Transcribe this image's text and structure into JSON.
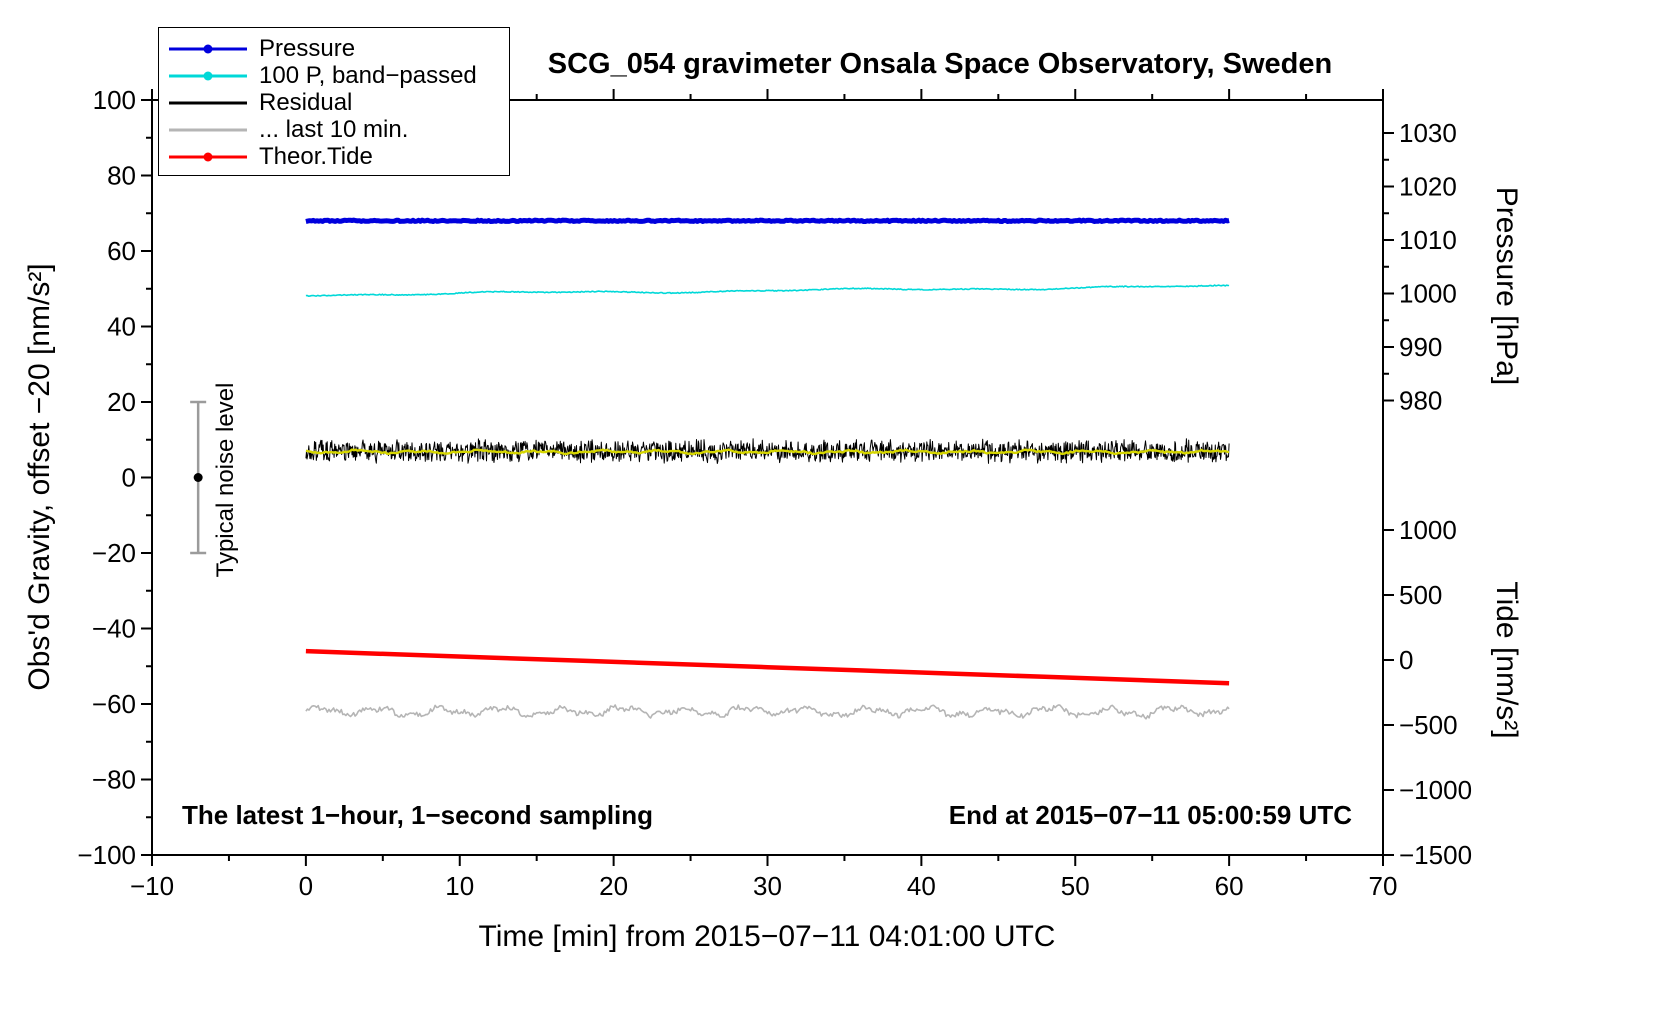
{
  "chart_data": {
    "type": "line",
    "title": "SCG_054 gravimeter Onsala Space Observatory, Sweden",
    "xlabel": "Time [min] from 2015−07−11 04:01:00 UTC",
    "ylabel_left": "Obs'd Gravity, offset −20 [nm/s²]",
    "ylabel_pressure": "Pressure [hPa]",
    "ylabel_tide": "Tide [nm/s²]",
    "annotation_left": "The latest 1−hour, 1−second sampling",
    "annotation_right": "End at 2015−07−11 05:00:59 UTC",
    "x_range": [
      -10,
      70
    ],
    "x_ticks": [
      -10,
      0,
      10,
      20,
      30,
      40,
      50,
      60,
      70
    ],
    "x_minor_step": 5,
    "y_left_range": [
      -100,
      100
    ],
    "y_left_ticks": [
      -100,
      -80,
      -60,
      -40,
      -20,
      0,
      20,
      40,
      60,
      80,
      100
    ],
    "y_left_minor_step": 10,
    "pressure_ticks": [
      1030,
      1020,
      1010,
      1000,
      990,
      980
    ],
    "pressure_minor_step": 5,
    "tide_ticks": [
      1000,
      500,
      0,
      -500,
      -1000,
      -1500
    ],
    "grid": false,
    "legend_position": "top-left",
    "legend": [
      {
        "label": "Pressure",
        "color": "#0000dd",
        "marker": "dot-line"
      },
      {
        "label": "100 P, band−passed",
        "color": "#00d8d8",
        "marker": "dot-line"
      },
      {
        "label": "Residual",
        "color": "#000000",
        "marker": "line"
      },
      {
        "label": "... last 10 min.",
        "color": "#b5b5b5",
        "marker": "line"
      },
      {
        "label": "Theor.Tide",
        "color": "#ff0000",
        "marker": "dot-line"
      }
    ],
    "series_units": "left gravity axis units (nm/s², offset −20); x in minutes",
    "series": [
      {
        "name": "Pressure",
        "kind": "flat",
        "x_span": [
          0,
          60
        ],
        "level": 68,
        "jitter": 0.18,
        "color": "#0000dd",
        "width": 5,
        "points": 500,
        "note": "flat ≈ 1013 hPa on pressure axis"
      },
      {
        "name": "100 P, band−passed",
        "kind": "drift",
        "x_span": [
          0,
          60
        ],
        "y_start": 48.4,
        "y_end": 50.6,
        "jitter": 0.12,
        "color": "#00d8d8",
        "width": 1.6,
        "points": 700
      },
      {
        "name": "Residual",
        "kind": "noise",
        "x_span": [
          0,
          60
        ],
        "level": 7,
        "amp": 3.4,
        "color": "#000000",
        "width": 1,
        "points": 1600
      },
      {
        "name": "Residual running mean",
        "kind": "wavy",
        "x_span": [
          0,
          60
        ],
        "level": 6.8,
        "amp": 0.5,
        "color": "#d6d600",
        "width": 2.4,
        "points": 500
      },
      {
        "name": "Theor.Tide",
        "kind": "linear",
        "x_span": [
          0,
          60
        ],
        "y_start": -46,
        "y_end": -54.5,
        "color": "#ff0000",
        "width": 4.5,
        "points": 10,
        "note": "≈ +70 to −180 on tide axis"
      },
      {
        "name": "... last 10 min.",
        "kind": "wavy",
        "x_span": [
          0,
          60
        ],
        "level": -62,
        "amp": 1.6,
        "color": "#b5b5b5",
        "width": 1.6,
        "points": 600
      }
    ],
    "noise_marker": {
      "label": "Typical noise level",
      "x": -7,
      "center": 0,
      "half_range": 20,
      "bar_color": "#9b9b9b",
      "dot_color": "#000000"
    }
  }
}
